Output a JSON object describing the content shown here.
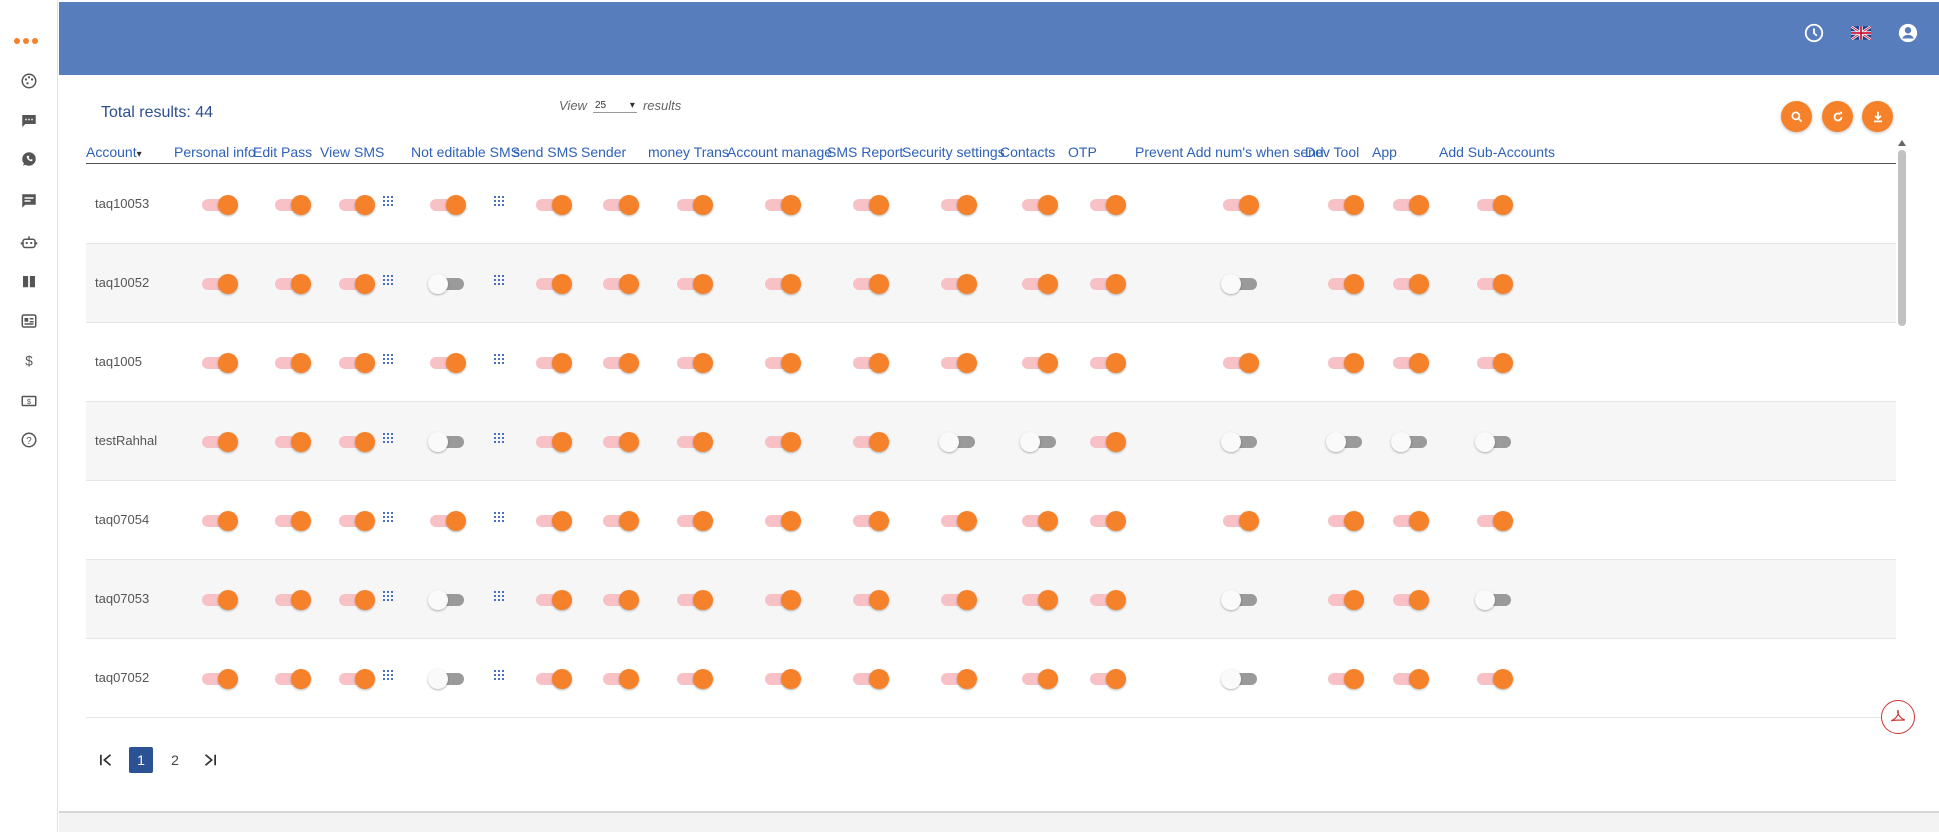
{
  "colors": {
    "accent": "#f5822a",
    "header": "#587dbd",
    "link": "#2e61b8",
    "pager_active": "#2a5295"
  },
  "sidebar": {
    "icons": [
      "menu-dots-icon",
      "palette-icon",
      "chat-icon",
      "whatsapp-icon",
      "message-icon",
      "robot-icon",
      "book-icon",
      "news-icon",
      "dollar-icon",
      "money-icon",
      "help-icon"
    ]
  },
  "header": {
    "icons": [
      "history-icon",
      "uk-flag-icon",
      "account-icon"
    ]
  },
  "main": {
    "total_label": "Total results: 44",
    "view_prefix": "View",
    "view_value": "25",
    "view_suffix": "results",
    "actions": [
      "search-icon",
      "refresh-icon",
      "download-icon"
    ]
  },
  "table": {
    "columns": [
      "Account",
      "Personal info",
      "Edit Pass",
      "View SMS",
      "Not editable SMS",
      "send SMS",
      "Sender",
      "money Trans",
      "Account manage",
      "SMS Report",
      "Security settings",
      "Contacts",
      "OTP",
      "Prevent Add num's when send",
      "Dev Tool",
      "App",
      "Add Sub-Accounts"
    ],
    "sort_indicator": "▾",
    "rows": [
      {
        "account": "taq10053",
        "toggles": [
          1,
          1,
          1,
          1,
          1,
          1,
          1,
          1,
          1,
          1,
          1,
          1,
          1,
          1,
          1,
          1
        ]
      },
      {
        "account": "taq10052",
        "toggles": [
          1,
          1,
          1,
          0,
          1,
          1,
          1,
          1,
          1,
          1,
          1,
          1,
          0,
          1,
          1,
          1
        ]
      },
      {
        "account": "taq1005",
        "toggles": [
          1,
          1,
          1,
          1,
          1,
          1,
          1,
          1,
          1,
          1,
          1,
          1,
          1,
          1,
          1,
          1
        ]
      },
      {
        "account": "testRahhal",
        "toggles": [
          1,
          1,
          1,
          0,
          1,
          1,
          1,
          1,
          1,
          0,
          0,
          1,
          0,
          0,
          0,
          0
        ]
      },
      {
        "account": "taq07054",
        "toggles": [
          1,
          1,
          1,
          1,
          1,
          1,
          1,
          1,
          1,
          1,
          1,
          1,
          1,
          1,
          1,
          1
        ]
      },
      {
        "account": "taq07053",
        "toggles": [
          1,
          1,
          1,
          0,
          1,
          1,
          1,
          1,
          1,
          1,
          1,
          1,
          0,
          1,
          1,
          0
        ]
      },
      {
        "account": "taq07052",
        "toggles": [
          1,
          1,
          1,
          0,
          1,
          1,
          1,
          1,
          1,
          1,
          1,
          1,
          0,
          1,
          1,
          1
        ]
      }
    ]
  },
  "pagination": {
    "first": "|<",
    "pages": [
      "1",
      "2"
    ],
    "current": "1",
    "last": ">|"
  },
  "pdf_icon": "pdf-icon"
}
